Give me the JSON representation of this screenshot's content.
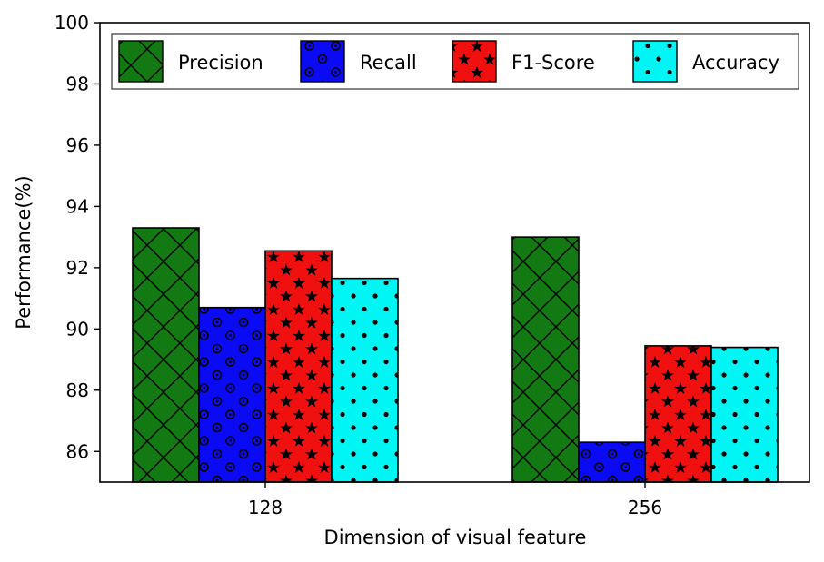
{
  "chart_data": {
    "type": "bar",
    "categories": [
      "128",
      "256"
    ],
    "series": [
      {
        "name": "Precision",
        "values": [
          93.3,
          93.0
        ],
        "color": "#137913",
        "pattern": "crosshatch"
      },
      {
        "name": "Recall",
        "values": [
          90.7,
          86.3
        ],
        "color": "#0a0af5",
        "pattern": "circles"
      },
      {
        "name": "F1-Score",
        "values": [
          92.55,
          89.45
        ],
        "color": "#f01010",
        "pattern": "stars"
      },
      {
        "name": "Accuracy",
        "values": [
          91.65,
          89.4
        ],
        "color": "#00f5f5",
        "pattern": "dots"
      }
    ],
    "xlabel": "Dimension of visual feature",
    "ylabel": "Performance(%)",
    "ylim": [
      85,
      100
    ],
    "yticks": [
      "86",
      "88",
      "90",
      "92",
      "94",
      "96",
      "98",
      "100"
    ],
    "legend_position": "top",
    "grid": false
  }
}
